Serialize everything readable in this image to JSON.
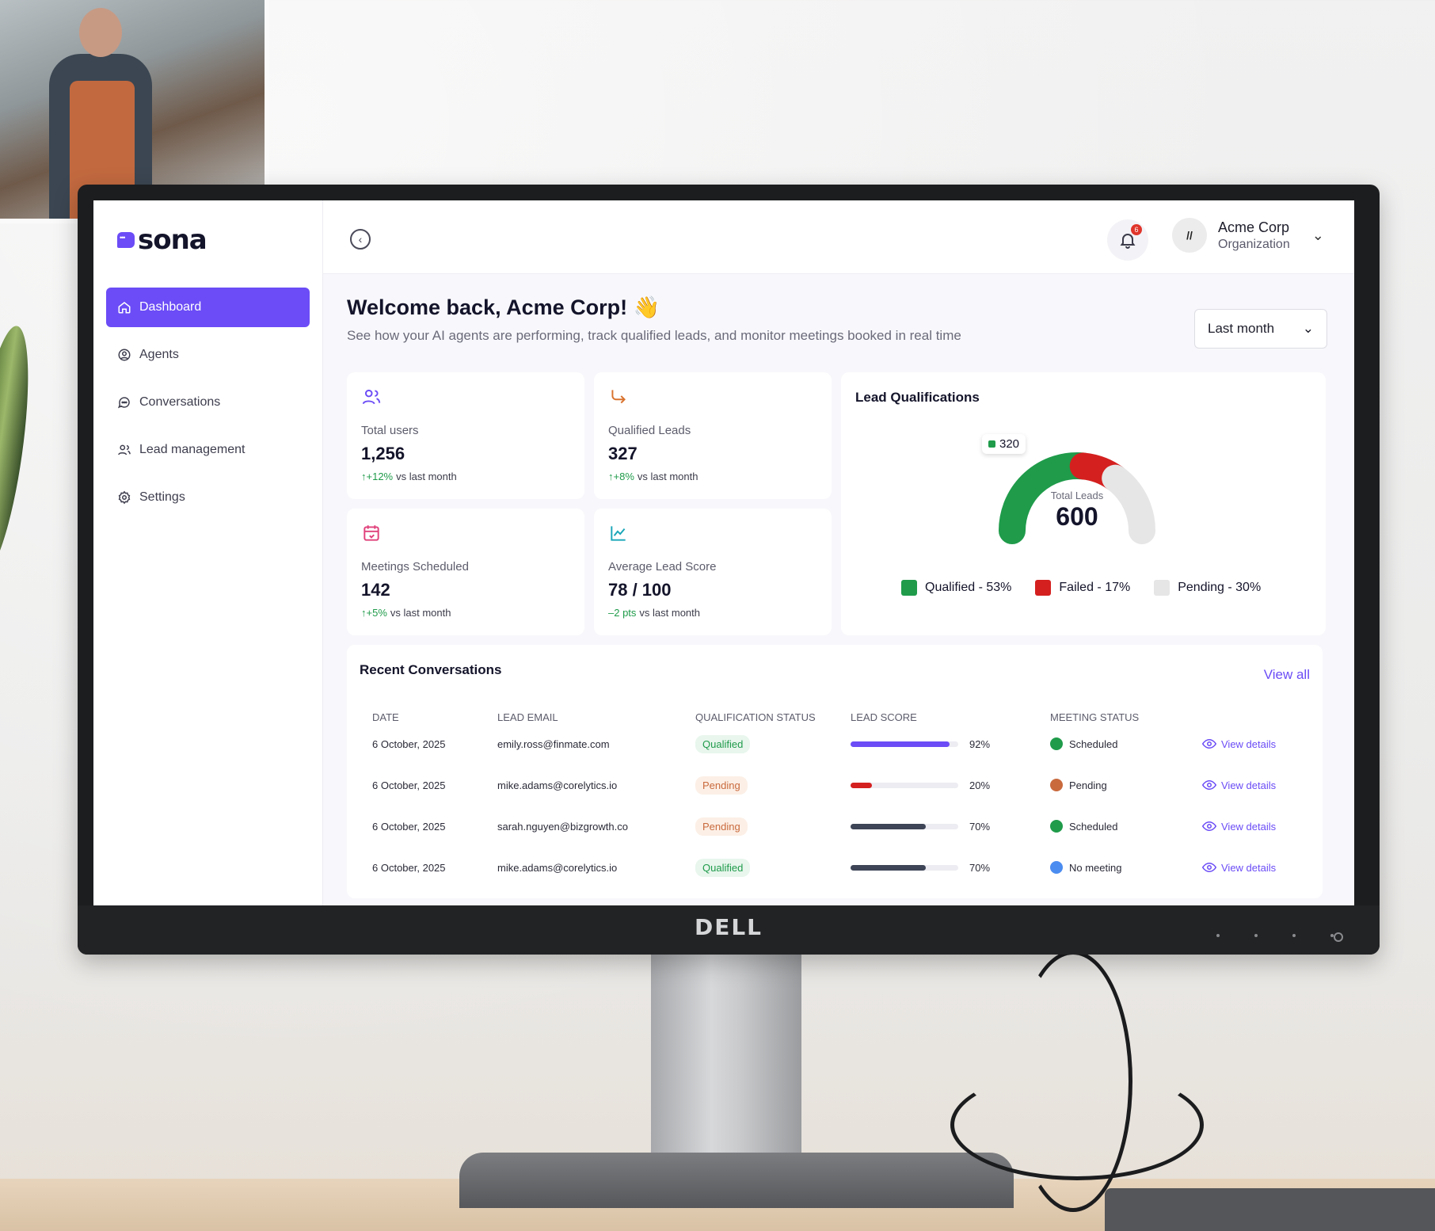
{
  "app": {
    "logo": "sona",
    "brand_logo_text": "DELL"
  },
  "colors": {
    "accent": "#6b4cf6",
    "qualified": "#1f9b4a",
    "failed": "#d4201f",
    "pending": "#e6e6e6"
  },
  "sidebar": {
    "items": [
      {
        "label": "Dashboard",
        "icon": "home-icon",
        "active": true
      },
      {
        "label": "Agents",
        "icon": "user-circle-icon",
        "active": false
      },
      {
        "label": "Conversations",
        "icon": "chat-bubble-icon",
        "active": false
      },
      {
        "label": "Lead management",
        "icon": "users-icon",
        "active": false
      },
      {
        "label": "Settings",
        "icon": "gear-icon",
        "active": false
      }
    ]
  },
  "header": {
    "notification_count": "6",
    "org_name": "Acme Corp",
    "org_type": "Organization"
  },
  "welcome": {
    "title": "Welcome back, Acme Corp! 👋",
    "subtitle": "See how your AI agents are performing, track qualified leads, and monitor meetings booked in real time",
    "range": "Last month"
  },
  "stats": [
    {
      "label": "Total users",
      "value": "1,256",
      "delta": "↑+12%",
      "delta_suffix": "vs last month",
      "icon": "users-icon"
    },
    {
      "label": "Qualified Leads",
      "value": "327",
      "delta": "↑+8%",
      "delta_suffix": "vs last month",
      "icon": "arrow-turn-icon"
    },
    {
      "label": "Meetings Scheduled",
      "value": "142",
      "delta": "↑+5%",
      "delta_suffix": "vs last month",
      "icon": "calendar-icon"
    },
    {
      "label": "Average Lead Score",
      "value": "78 / 100",
      "delta": "–2 pts",
      "delta_suffix": "vs last month",
      "icon": "line-chart-icon"
    }
  ],
  "lead_qualifications": {
    "title": "Lead Qualifications",
    "tooltip_value": "320",
    "center_label": "Total Leads",
    "center_value": "600",
    "legend": [
      {
        "label": "Qualified - 53%",
        "color": "#1f9b4a"
      },
      {
        "label": "Failed - 17%",
        "color": "#d4201f"
      },
      {
        "label": "Pending - 30%",
        "color": "#e6e6e6"
      }
    ]
  },
  "chart_data": {
    "type": "pie",
    "labels": [
      "Qualified",
      "Failed",
      "Pending"
    ],
    "values": [
      53,
      17,
      30
    ],
    "total": 600
  },
  "recent": {
    "title": "Recent Conversations",
    "view_all": "View all",
    "columns": [
      "DATE",
      "LEAD EMAIL",
      "QUALIFICATION STATUS",
      "LEAD SCORE",
      "MEETING STATUS"
    ],
    "rows": [
      {
        "date": "6 October, 2025",
        "email": "emily.ross@finmate.com",
        "status": "Qualified",
        "status_kind": "qualified",
        "score": 0.92,
        "score_label": "92%",
        "bar_color": "#6b4cf6",
        "meeting": "Scheduled",
        "meeting_color": "#1f9b4a",
        "action": "View details"
      },
      {
        "date": "6 October, 2025",
        "email": "mike.adams@corelytics.io",
        "status": "Pending",
        "status_kind": "pending",
        "score": 0.2,
        "score_label": "20%",
        "bar_color": "#d4201f",
        "meeting": "Pending",
        "meeting_color": "#c96a3d",
        "action": "View details"
      },
      {
        "date": "6 October, 2025",
        "email": "sarah.nguyen@bizgrowth.co",
        "status": "Pending",
        "status_kind": "pending",
        "score": 0.7,
        "score_label": "70%",
        "bar_color": "#3d4556",
        "meeting": "Scheduled",
        "meeting_color": "#1f9b4a",
        "action": "View details"
      },
      {
        "date": "6 October, 2025",
        "email": "mike.adams@corelytics.io",
        "status": "Qualified",
        "status_kind": "qualified",
        "score": 0.7,
        "score_label": "70%",
        "bar_color": "#3d4556",
        "meeting": "No meeting",
        "meeting_color": "#4b8cf0",
        "action": "View details"
      }
    ]
  }
}
